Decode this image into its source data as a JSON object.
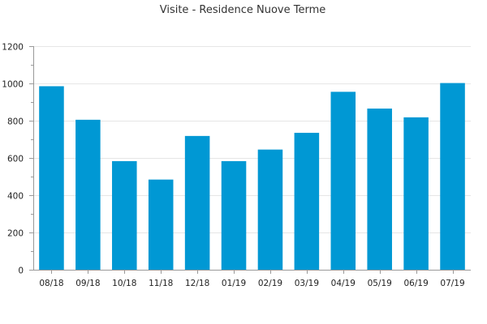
{
  "chart_data": {
    "type": "bar",
    "title": "Visite - Residence Nuove Terme",
    "xlabel": "",
    "ylabel": "",
    "categories": [
      "08/18",
      "09/18",
      "10/18",
      "11/18",
      "12/18",
      "01/19",
      "02/19",
      "03/19",
      "04/19",
      "05/19",
      "06/19",
      "07/19"
    ],
    "values": [
      985,
      805,
      583,
      484,
      718,
      583,
      645,
      735,
      955,
      865,
      818,
      1002
    ],
    "ylim": [
      0,
      1200
    ],
    "yticks": [
      0,
      200,
      400,
      600,
      800,
      1000,
      1200
    ],
    "grid": true,
    "legend": "none",
    "bar_color": "#0098d4"
  }
}
